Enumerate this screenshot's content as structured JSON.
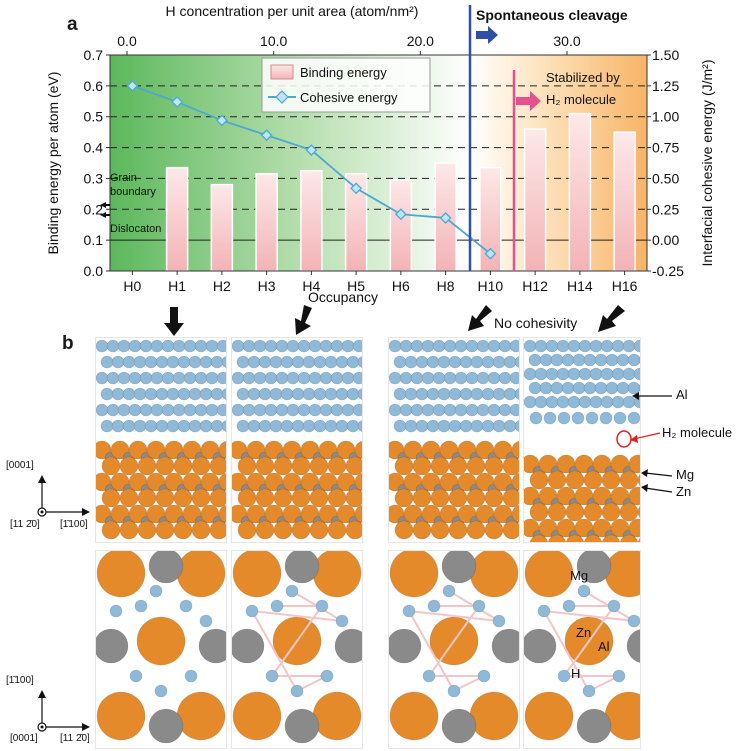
{
  "panel_labels": {
    "a": "a",
    "b": "b"
  },
  "colors": {
    "binding_bar_top": "#f7c9c9",
    "binding_bar_bottom": "#f1a7aa",
    "cohesive_line": "#4ea8cf",
    "cohesive_marker": "#bfe4f2",
    "green_region": "#5cb85c",
    "orange_region": "#f7b466",
    "cleavage_line": "#2e4fa3",
    "stabilized_marker": "#e5508e",
    "al_atom": "#8fb9d8",
    "mg_atom": "#e58a2a",
    "zn_atom": "#8a8a8a",
    "h_atom": "#f2c6c6"
  },
  "chart_data": {
    "type": "bar",
    "categories": [
      "H0",
      "H1",
      "H2",
      "H3",
      "H4",
      "H5",
      "H6",
      "H8",
      "H10",
      "H12",
      "H14",
      "H16"
    ],
    "xlabel": "Occupancy",
    "top_xlabel": "H concentration per unit area (atom/nm²)",
    "top_ticks": [
      "0.0",
      "10.0",
      "20.0",
      "30.0"
    ],
    "ylabel_left": "Binding energy per atom (eV)",
    "ylabel_right": "Interfacial cohesive energy (J/m²)",
    "ylim_left": [
      0.0,
      0.7
    ],
    "ylim_right": [
      -0.25,
      1.5
    ],
    "left_ticks": [
      "0.0",
      "0.1",
      "0.2",
      "0.3",
      "0.4",
      "0.5",
      "0.6",
      "0.7"
    ],
    "right_ticks": [
      "-0.25",
      "0.00",
      "0.25",
      "0.50",
      "0.75",
      "1.00",
      "1.25",
      "1.50"
    ],
    "grid": "horizontal dashed",
    "legend_position": "top-center",
    "series": [
      {
        "name": "Binding energy",
        "type": "bar",
        "axis": "left",
        "values": [
          null,
          0.335,
          0.28,
          0.315,
          0.325,
          0.315,
          0.295,
          0.35,
          0.335,
          0.46,
          0.51,
          0.45
        ]
      },
      {
        "name": "Cohesive energy",
        "type": "line",
        "axis": "right",
        "values": [
          1.25,
          1.12,
          0.97,
          0.85,
          0.73,
          0.42,
          0.21,
          0.18,
          -0.11,
          null,
          null,
          null
        ]
      }
    ],
    "annotations": {
      "grain_boundary": [
        "Grain",
        "boundary"
      ],
      "dislocation": "Dislocaton",
      "spontaneous_cleavage": "Spontaneous cleavage",
      "stabilized_line1": "Stabilized by",
      "stabilized_line2": "H₂ molecule"
    }
  },
  "panel_b": {
    "no_cohesivity": "No cohesivity",
    "labels": {
      "al": "Al",
      "h2_molecule": "H₂ molecule",
      "mg": "Mg",
      "zn": "Zn",
      "mg_bottom": "Mg",
      "zn_bottom": "Zn",
      "al_bottom": "Al",
      "h_bottom": "H"
    },
    "axes_top": {
      "up": "[0001]",
      "origin": "[11 2̄0]",
      "right": "[1̄100]"
    },
    "axes_bottom": {
      "up": "[1̄100]",
      "origin": "[0001]",
      "right": "[11 2̄0]"
    }
  }
}
